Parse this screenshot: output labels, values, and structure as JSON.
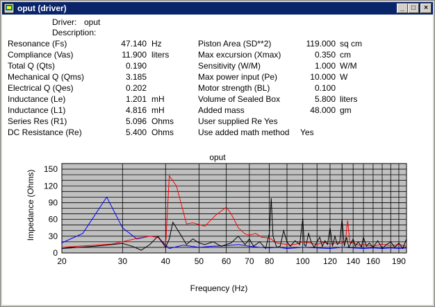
{
  "window": {
    "title": "oput (driver)",
    "icon": "app-icon",
    "controls": [
      "minimize-icon",
      "maximize-icon",
      "close-icon"
    ]
  },
  "header": {
    "driver_label": "Driver:",
    "driver_value": "oput",
    "description_label": "Description:"
  },
  "left_params": [
    {
      "label": "Resonance (Fs)",
      "value": "47.140",
      "unit": "Hz"
    },
    {
      "label": "Compliance (Vas)",
      "value": "11.900",
      "unit": "liters"
    },
    {
      "label": "Total Q (Qts)",
      "value": "0.190",
      "unit": ""
    },
    {
      "label": "Mechanical Q (Qms)",
      "value": "3.185",
      "unit": ""
    },
    {
      "label": "Electrical Q (Qes)",
      "value": "0.202",
      "unit": ""
    },
    {
      "label": "Inductance (Le)",
      "value": "1.201",
      "unit": "mH"
    },
    {
      "label": "Inductance (L1)",
      "value": "4.816",
      "unit": "mH"
    },
    {
      "label": "Series Res (R1)",
      "value": "5.096",
      "unit": "Ohms"
    },
    {
      "label": "DC Resistance (Re)",
      "value": "5.400",
      "unit": "Ohms"
    }
  ],
  "right_params": [
    {
      "label": "Piston Area (SD**2)",
      "value": "119.000",
      "unit": "sq cm"
    },
    {
      "label": "Max excursion (Xmax)",
      "value": "0.350",
      "unit": "cm"
    },
    {
      "label": "Sensitivity (W/M)",
      "value": "1.000",
      "unit": "W/M"
    },
    {
      "label": "Max power input (Pe)",
      "value": "10.000",
      "unit": "W"
    },
    {
      "label": "Motor strength (BL)",
      "value": "0.100",
      "unit": ""
    },
    {
      "label": "Volume of Sealed Box",
      "value": "5.800",
      "unit": "liters"
    },
    {
      "label": "Added mass",
      "value": "48.000",
      "unit": "gm"
    }
  ],
  "flags": [
    {
      "label": "User supplied Re",
      "value": "Yes"
    },
    {
      "label": "Use added math method",
      "value": "Yes"
    }
  ],
  "chart_data": {
    "type": "line",
    "title": "oput",
    "xlabel": "Frequency (Hz)",
    "ylabel": "Impedance (Ohms)",
    "x_scale": "log",
    "xlim": [
      20,
      200
    ],
    "ylim": [
      0,
      160
    ],
    "x_ticks": [
      20,
      30,
      40,
      50,
      60,
      70,
      80,
      100,
      120,
      140,
      160,
      190
    ],
    "y_ticks": [
      0,
      30,
      60,
      90,
      120,
      150
    ],
    "grid": true,
    "background": "#c0c0c0",
    "series": [
      {
        "color": "#0000ff",
        "x": [
          20,
          23,
          27,
          30,
          33,
          36,
          38,
          41,
          45,
          50,
          55,
          60,
          65,
          70,
          75,
          80,
          85,
          90,
          95,
          100,
          110,
          120,
          130,
          140,
          150,
          160,
          170,
          180,
          190,
          200
        ],
        "y": [
          18,
          35,
          100,
          45,
          25,
          30,
          28,
          8,
          14,
          10,
          12,
          13,
          15,
          12,
          10,
          9,
          10,
          8,
          9,
          10,
          9,
          8,
          10,
          9,
          8,
          9,
          8,
          9,
          8,
          9
        ]
      },
      {
        "color": "#ff0000",
        "x": [
          20,
          25,
          28,
          30,
          33,
          36,
          38,
          40,
          41,
          43,
          46,
          48,
          52,
          56,
          58,
          60,
          62,
          65,
          68,
          70,
          73,
          76,
          80,
          84,
          88,
          92,
          96,
          100,
          105,
          110,
          115,
          120,
          125,
          130,
          133,
          135,
          137,
          140,
          145,
          150,
          160,
          170,
          180,
          190,
          200
        ],
        "y": [
          10,
          14,
          16,
          20,
          26,
          30,
          28,
          12,
          138,
          120,
          52,
          54,
          48,
          68,
          75,
          82,
          70,
          45,
          34,
          32,
          35,
          28,
          27,
          18,
          16,
          14,
          16,
          20,
          18,
          15,
          19,
          16,
          18,
          17,
          22,
          58,
          18,
          18,
          14,
          15,
          12,
          16,
          13,
          15,
          12
        ]
      },
      {
        "color": "#000000",
        "x": [
          20,
          25,
          28,
          30,
          32,
          34,
          36,
          38,
          40,
          41,
          42,
          44,
          46,
          48,
          50,
          52,
          55,
          58,
          60,
          62,
          65,
          68,
          70,
          72,
          75,
          78,
          80,
          81,
          82,
          84,
          86,
          88,
          90,
          92,
          95,
          98,
          100,
          101,
          102,
          104,
          106,
          108,
          110,
          112,
          114,
          116,
          118,
          120,
          122,
          124,
          126,
          128,
          130,
          132,
          134,
          136,
          138,
          140,
          142,
          145,
          148,
          150,
          153,
          156,
          160,
          165,
          170,
          175,
          180,
          185,
          190,
          195,
          200
        ],
        "y": [
          8,
          12,
          15,
          17,
          12,
          5,
          15,
          30,
          10,
          25,
          55,
          35,
          15,
          25,
          18,
          15,
          20,
          12,
          15,
          18,
          30,
          15,
          25,
          12,
          20,
          8,
          35,
          98,
          30,
          10,
          12,
          40,
          20,
          12,
          22,
          15,
          62,
          15,
          12,
          35,
          18,
          10,
          20,
          28,
          12,
          22,
          15,
          45,
          12,
          30,
          15,
          20,
          60,
          12,
          28,
          10,
          18,
          25,
          12,
          20,
          10,
          28,
          12,
          18,
          10,
          22,
          8,
          15,
          20,
          10,
          18,
          8,
          25
        ]
      }
    ]
  }
}
